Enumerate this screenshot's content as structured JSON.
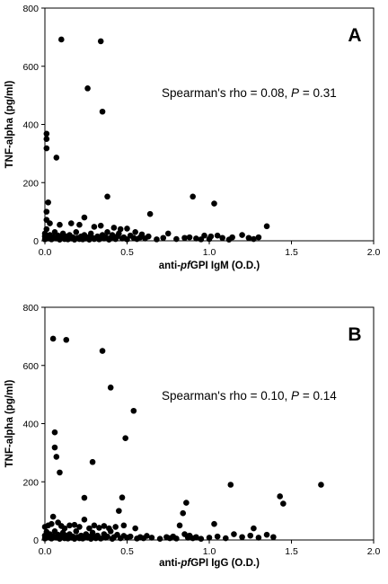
{
  "chart_data": [
    {
      "type": "scatter",
      "panel_label": "A",
      "xlabel_parts": [
        "anti-",
        "pf",
        "GPI IgM (O.D.)"
      ],
      "ylabel": "TNF-alpha (pg/ml)",
      "annotation_parts": [
        "Spearman's rho = 0.08, ",
        "P",
        " = 0.31"
      ],
      "xlim": [
        0,
        2.0
      ],
      "ylim": [
        0,
        800
      ],
      "x_ticks": [
        "0.0",
        "0.5",
        "1.0",
        "1.5",
        "2.0"
      ],
      "y_ticks": [
        "0",
        "200",
        "400",
        "600",
        "800"
      ],
      "grid": false,
      "legend": "none",
      "marker_color": "#000000",
      "points": [
        [
          0.1,
          692
        ],
        [
          0.34,
          686
        ],
        [
          0.26,
          524
        ],
        [
          0.35,
          444
        ],
        [
          0.01,
          368
        ],
        [
          0.01,
          350
        ],
        [
          0.01,
          318
        ],
        [
          0.07,
          286
        ],
        [
          0.38,
          152
        ],
        [
          0.9,
          152
        ],
        [
          1.03,
          128
        ],
        [
          0.02,
          132
        ],
        [
          0.01,
          100
        ],
        [
          0.64,
          92
        ],
        [
          0.01,
          72
        ],
        [
          0.03,
          60
        ],
        [
          0.09,
          55
        ],
        [
          0.16,
          60
        ],
        [
          0.21,
          55
        ],
        [
          0.24,
          80
        ],
        [
          0.3,
          48
        ],
        [
          0.34,
          52
        ],
        [
          0.42,
          45
        ],
        [
          0.46,
          40
        ],
        [
          0.5,
          42
        ],
        [
          0.55,
          30
        ],
        [
          0.59,
          22
        ],
        [
          0.75,
          25
        ],
        [
          0.85,
          10
        ],
        [
          0.97,
          18
        ],
        [
          1.01,
          15
        ],
        [
          1.05,
          18
        ],
        [
          1.08,
          10
        ],
        [
          1.14,
          12
        ],
        [
          1.2,
          20
        ],
        [
          1.24,
          10
        ],
        [
          1.3,
          12
        ],
        [
          1.35,
          50
        ],
        [
          0.0,
          5
        ],
        [
          0.0,
          15
        ],
        [
          0.0,
          25
        ],
        [
          0.01,
          40
        ],
        [
          0.02,
          8
        ],
        [
          0.03,
          20
        ],
        [
          0.04,
          5
        ],
        [
          0.05,
          12
        ],
        [
          0.06,
          30
        ],
        [
          0.07,
          8
        ],
        [
          0.08,
          18
        ],
        [
          0.09,
          4
        ],
        [
          0.1,
          10
        ],
        [
          0.11,
          25
        ],
        [
          0.12,
          6
        ],
        [
          0.13,
          15
        ],
        [
          0.14,
          5
        ],
        [
          0.15,
          20
        ],
        [
          0.16,
          8
        ],
        [
          0.17,
          12
        ],
        [
          0.18,
          4
        ],
        [
          0.19,
          30
        ],
        [
          0.2,
          10
        ],
        [
          0.21,
          6
        ],
        [
          0.22,
          15
        ],
        [
          0.23,
          5
        ],
        [
          0.24,
          20
        ],
        [
          0.25,
          8
        ],
        [
          0.26,
          12
        ],
        [
          0.27,
          4
        ],
        [
          0.28,
          25
        ],
        [
          0.29,
          10
        ],
        [
          0.3,
          6
        ],
        [
          0.32,
          15
        ],
        [
          0.33,
          5
        ],
        [
          0.35,
          20
        ],
        [
          0.36,
          8
        ],
        [
          0.37,
          12
        ],
        [
          0.38,
          30
        ],
        [
          0.39,
          4
        ],
        [
          0.4,
          10
        ],
        [
          0.41,
          20
        ],
        [
          0.43,
          6
        ],
        [
          0.44,
          15
        ],
        [
          0.45,
          25
        ],
        [
          0.47,
          8
        ],
        [
          0.48,
          12
        ],
        [
          0.5,
          5
        ],
        [
          0.52,
          18
        ],
        [
          0.54,
          10
        ],
        [
          0.56,
          6
        ],
        [
          0.58,
          12
        ],
        [
          0.61,
          8
        ],
        [
          0.63,
          15
        ],
        [
          0.68,
          5
        ],
        [
          0.72,
          10
        ],
        [
          0.8,
          6
        ],
        [
          0.88,
          12
        ],
        [
          0.92,
          8
        ],
        [
          0.95,
          5
        ],
        [
          1.0,
          6
        ],
        [
          1.12,
          4
        ],
        [
          1.27,
          6
        ]
      ]
    },
    {
      "type": "scatter",
      "panel_label": "B",
      "xlabel_parts": [
        "anti-",
        "pf",
        "GPI IgG (O.D.)"
      ],
      "ylabel": "TNF-alpha (pg/ml)",
      "annotation_parts": [
        "Spearman's rho = 0.10, ",
        "P",
        " = 0.14"
      ],
      "xlim": [
        0,
        2.0
      ],
      "ylim": [
        0,
        800
      ],
      "x_ticks": [
        "0.0",
        "0.5",
        "1.0",
        "1.5",
        "2.0"
      ],
      "y_ticks": [
        "0",
        "200",
        "400",
        "600",
        "800"
      ],
      "grid": false,
      "legend": "none",
      "marker_color": "#000000",
      "points": [
        [
          0.05,
          692
        ],
        [
          0.13,
          688
        ],
        [
          0.35,
          650
        ],
        [
          0.4,
          524
        ],
        [
          0.54,
          444
        ],
        [
          0.06,
          370
        ],
        [
          0.06,
          318
        ],
        [
          0.07,
          286
        ],
        [
          0.09,
          232
        ],
        [
          0.49,
          350
        ],
        [
          0.29,
          268
        ],
        [
          0.24,
          145
        ],
        [
          0.47,
          146
        ],
        [
          0.45,
          100
        ],
        [
          0.86,
          128
        ],
        [
          0.84,
          92
        ],
        [
          1.13,
          190
        ],
        [
          1.43,
          150
        ],
        [
          1.45,
          125
        ],
        [
          1.68,
          190
        ],
        [
          0.0,
          45
        ],
        [
          0.02,
          50
        ],
        [
          0.04,
          55
        ],
        [
          0.05,
          80
        ],
        [
          0.08,
          60
        ],
        [
          0.1,
          48
        ],
        [
          0.12,
          40
        ],
        [
          0.15,
          50
        ],
        [
          0.18,
          52
        ],
        [
          0.21,
          45
        ],
        [
          0.24,
          70
        ],
        [
          0.27,
          40
        ],
        [
          0.3,
          50
        ],
        [
          0.33,
          42
        ],
        [
          0.36,
          48
        ],
        [
          0.39,
          40
        ],
        [
          0.43,
          45
        ],
        [
          0.48,
          50
        ],
        [
          0.55,
          40
        ],
        [
          0.82,
          50
        ],
        [
          1.03,
          55
        ],
        [
          1.27,
          40
        ],
        [
          0.0,
          5
        ],
        [
          0.0,
          15
        ],
        [
          0.01,
          28
        ],
        [
          0.02,
          10
        ],
        [
          0.03,
          20
        ],
        [
          0.04,
          5
        ],
        [
          0.05,
          12
        ],
        [
          0.06,
          30
        ],
        [
          0.07,
          8
        ],
        [
          0.08,
          18
        ],
        [
          0.09,
          4
        ],
        [
          0.1,
          10
        ],
        [
          0.11,
          25
        ],
        [
          0.12,
          6
        ],
        [
          0.13,
          15
        ],
        [
          0.14,
          5
        ],
        [
          0.15,
          20
        ],
        [
          0.16,
          8
        ],
        [
          0.17,
          12
        ],
        [
          0.18,
          4
        ],
        [
          0.19,
          30
        ],
        [
          0.2,
          10
        ],
        [
          0.21,
          6
        ],
        [
          0.22,
          15
        ],
        [
          0.23,
          5
        ],
        [
          0.25,
          20
        ],
        [
          0.26,
          8
        ],
        [
          0.27,
          12
        ],
        [
          0.28,
          4
        ],
        [
          0.29,
          25
        ],
        [
          0.3,
          10
        ],
        [
          0.31,
          6
        ],
        [
          0.32,
          15
        ],
        [
          0.34,
          5
        ],
        [
          0.36,
          20
        ],
        [
          0.37,
          8
        ],
        [
          0.38,
          12
        ],
        [
          0.4,
          30
        ],
        [
          0.41,
          4
        ],
        [
          0.42,
          10
        ],
        [
          0.44,
          18
        ],
        [
          0.46,
          6
        ],
        [
          0.48,
          14
        ],
        [
          0.5,
          8
        ],
        [
          0.52,
          12
        ],
        [
          0.56,
          5
        ],
        [
          0.58,
          10
        ],
        [
          0.6,
          6
        ],
        [
          0.62,
          14
        ],
        [
          0.65,
          8
        ],
        [
          0.7,
          4
        ],
        [
          0.74,
          10
        ],
        [
          0.76,
          6
        ],
        [
          0.78,
          12
        ],
        [
          0.8,
          5
        ],
        [
          0.85,
          20
        ],
        [
          0.87,
          8
        ],
        [
          0.88,
          15
        ],
        [
          0.9,
          6
        ],
        [
          0.92,
          10
        ],
        [
          0.95,
          4
        ],
        [
          1.0,
          8
        ],
        [
          1.05,
          12
        ],
        [
          1.1,
          6
        ],
        [
          1.15,
          20
        ],
        [
          1.2,
          10
        ],
        [
          1.25,
          15
        ],
        [
          1.3,
          8
        ],
        [
          1.35,
          18
        ],
        [
          1.39,
          10
        ]
      ]
    }
  ]
}
